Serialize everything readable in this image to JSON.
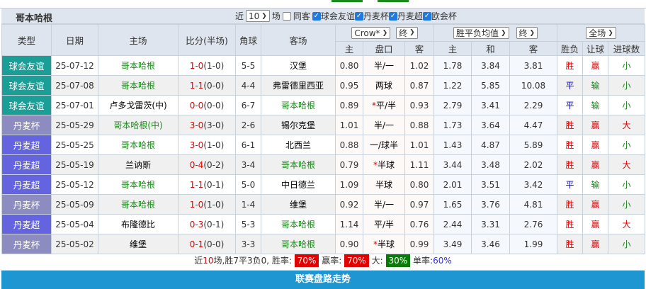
{
  "title": "哥本哈根",
  "filters": {
    "near_label": "近",
    "count": "10",
    "match_label": "场",
    "same_away": {
      "label": "同客",
      "checked": false
    },
    "leagues": [
      {
        "label": "球会友谊",
        "checked": true
      },
      {
        "label": "丹麦杯",
        "checked": true
      },
      {
        "label": "丹麦超",
        "checked": true
      },
      {
        "label": "欧会杯",
        "checked": true
      }
    ]
  },
  "header": {
    "type": "类型",
    "date": "日期",
    "home": "主场",
    "score": "比分(半场)",
    "corner": "角球",
    "away": "客场",
    "company": "Crow*",
    "ah_stage": "终",
    "eu_type": "胜平负均值",
    "eu_stage": "终",
    "range": "全场",
    "ah_cols": [
      "主",
      "盘口",
      "客"
    ],
    "eu_cols": [
      "主",
      "和",
      "客"
    ],
    "res_cols": [
      "胜负",
      "让球",
      "进球数"
    ]
  },
  "colors": {
    "friendly": "#1a9e96",
    "cup": "#8c8cc0",
    "league": "#6464e0",
    "win": "#e00000",
    "draw": "#0000cc",
    "lose": "#1a8a1a",
    "team": "#1a8a1a",
    "score": "#e00000"
  },
  "rows": [
    {
      "type": "球会友谊",
      "kind": "friendly",
      "date": "25-07-12",
      "home": "哥本哈根",
      "home_team": true,
      "ft": "1-0",
      "ht": "(1-0)",
      "corner": "5-5",
      "away": "汉堡",
      "away_team": false,
      "ah": [
        "0.80",
        "半/一",
        "1.02"
      ],
      "star": false,
      "eu": [
        "1.78",
        "3.84",
        "3.81"
      ],
      "res": [
        "胜",
        "赢",
        "小"
      ]
    },
    {
      "type": "球会友谊",
      "kind": "friendly",
      "date": "25-07-08",
      "home": "哥本哈根",
      "home_team": true,
      "ft": "1-1",
      "ht": "(0-0)",
      "corner": "4-4",
      "away": "弗雷德里西亚",
      "away_team": false,
      "ah": [
        "0.95",
        "两球",
        "0.87"
      ],
      "star": false,
      "eu": [
        "1.22",
        "5.85",
        "10.08"
      ],
      "res": [
        "平",
        "输",
        "小"
      ]
    },
    {
      "type": "球会友谊",
      "kind": "friendly",
      "date": "25-07-01",
      "home": "卢多戈雷茨(中)",
      "home_team": false,
      "ft": "0-0",
      "ht": "(0-0)",
      "corner": "6-7",
      "away": "哥本哈根",
      "away_team": true,
      "ah": [
        "0.89",
        "平/半",
        "0.93"
      ],
      "star": true,
      "eu": [
        "2.79",
        "3.41",
        "2.29"
      ],
      "res": [
        "平",
        "输",
        "小"
      ]
    },
    {
      "type": "丹麦杯",
      "kind": "cup",
      "date": "25-05-29",
      "home": "哥本哈根(中)",
      "home_team": true,
      "ft": "3-0",
      "ht": "(3-0)",
      "corner": "2-6",
      "away": "锡尔克堡",
      "away_team": false,
      "ah": [
        "1.01",
        "半/一",
        "0.88"
      ],
      "star": false,
      "eu": [
        "1.73",
        "3.64",
        "4.47"
      ],
      "res": [
        "胜",
        "赢",
        "大"
      ]
    },
    {
      "type": "丹麦超",
      "kind": "league",
      "date": "25-05-25",
      "home": "哥本哈根",
      "home_team": true,
      "ft": "3-0",
      "ht": "(1-0)",
      "corner": "6-1",
      "away": "北西兰",
      "away_team": false,
      "ah": [
        "0.88",
        "一/球半",
        "1.01"
      ],
      "star": false,
      "eu": [
        "1.43",
        "4.87",
        "5.89"
      ],
      "res": [
        "胜",
        "赢",
        "小"
      ]
    },
    {
      "type": "丹麦超",
      "kind": "league",
      "date": "25-05-19",
      "home": "兰讷斯",
      "home_team": false,
      "ft": "0-4",
      "ht": "(0-2)",
      "corner": "3-4",
      "away": "哥本哈根",
      "away_team": true,
      "ah": [
        "0.79",
        "半球",
        "1.11"
      ],
      "star": true,
      "eu": [
        "3.44",
        "3.48",
        "2.02"
      ],
      "res": [
        "胜",
        "赢",
        "大"
      ]
    },
    {
      "type": "丹麦超",
      "kind": "league",
      "date": "25-05-12",
      "home": "哥本哈根",
      "home_team": true,
      "ft": "1-1",
      "ht": "(0-1)",
      "corner": "5-0",
      "away": "中日德兰",
      "away_team": false,
      "ah": [
        "1.09",
        "半球",
        "0.80"
      ],
      "star": false,
      "eu": [
        "2.01",
        "3.51",
        "3.42"
      ],
      "res": [
        "平",
        "输",
        "小"
      ]
    },
    {
      "type": "丹麦杯",
      "kind": "cup",
      "date": "25-05-09",
      "home": "哥本哈根",
      "home_team": true,
      "ft": "1-0",
      "ht": "(1-0)",
      "corner": "1-4",
      "away": "维堡",
      "away_team": false,
      "ah": [
        "0.92",
        "半/一",
        "0.97"
      ],
      "star": false,
      "eu": [
        "1.65",
        "3.76",
        "4.81"
      ],
      "res": [
        "胜",
        "赢",
        "小"
      ]
    },
    {
      "type": "丹麦超",
      "kind": "league",
      "date": "25-05-04",
      "home": "布隆德比",
      "home_team": false,
      "ft": "0-3",
      "ht": "(0-1)",
      "corner": "5-3",
      "away": "哥本哈根",
      "away_team": true,
      "ah": [
        "1.14",
        "平/半",
        "0.76"
      ],
      "star": false,
      "eu": [
        "2.44",
        "3.31",
        "2.76"
      ],
      "res": [
        "胜",
        "赢",
        "大"
      ]
    },
    {
      "type": "丹麦杯",
      "kind": "cup",
      "date": "25-05-02",
      "home": "维堡",
      "home_team": false,
      "ft": "0-1",
      "ht": "(0-0)",
      "corner": "3-3",
      "away": "哥本哈根",
      "away_team": true,
      "ah": [
        "0.90",
        "半球",
        "0.99"
      ],
      "star": true,
      "eu": [
        "3.49",
        "3.46",
        "1.99"
      ],
      "res": [
        "胜",
        "赢",
        "小"
      ]
    }
  ],
  "summary": {
    "p1": "近",
    "n": "10",
    "p2": "场,胜7平3负0, 胜率:",
    "win_rate": "70%",
    "p3": "赢率:",
    "ah_rate": "70%",
    "p4": "大:",
    "big_rate": "30%",
    "p5": "单率:",
    "odd_rate": "60%"
  },
  "bottom_label": "联赛盘路走势"
}
